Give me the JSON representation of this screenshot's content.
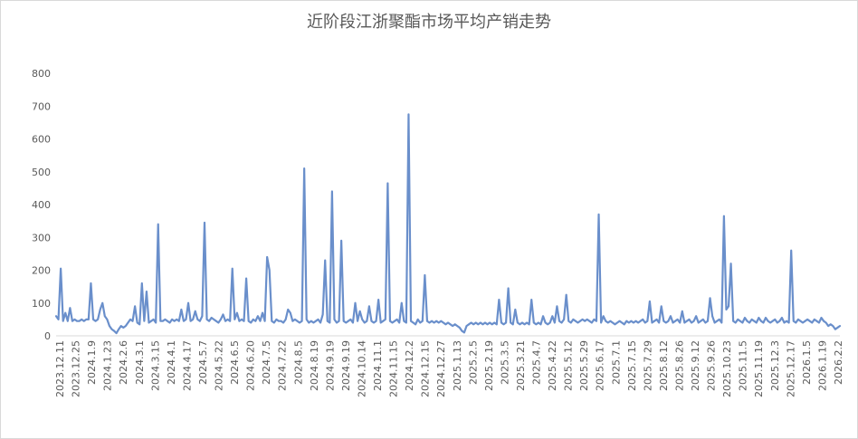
{
  "chart_data": {
    "type": "line",
    "title": "近阶段江浙聚酯市场平均产销走势",
    "xlabel": "",
    "ylabel": "",
    "ylim": [
      0,
      800
    ],
    "yticks": [
      0,
      100,
      200,
      300,
      400,
      500,
      600,
      700,
      800
    ],
    "grid": false,
    "legend": "none",
    "line_color": "#6a8fcb",
    "x_tick_labels": [
      "2023.12.11",
      "2023.12.25",
      "2024.1.9",
      "2024.1.23",
      "2024.2.6",
      "2024.3.1",
      "2024.3.15",
      "2024.4.1",
      "2024.4.17",
      "2024.5.7",
      "2024.5.22",
      "2024.6.5",
      "2024.6.20",
      "2024.7.5",
      "2024.7.22",
      "2024.8.5",
      "2024.8.19",
      "2024.9.19",
      "2024.9.19",
      "2024.10.14",
      "2024.11.1",
      "2024.11.15",
      "2024.12.2",
      "2024.12.15",
      "2024.12.27",
      "2025.1.13",
      "2025.2.5",
      "2025.2.19",
      "2025.3.5",
      "2025.3.21",
      "2025.4.7",
      "2025.4.22",
      "2025.5.12",
      "2025.5.29",
      "2025.6.17",
      "2025.7.1",
      "2025.7.15",
      "2025.7.29",
      "2025.8.12",
      "2025.8.26",
      "2025.9.12",
      "2025.9.26",
      "2025.10.23",
      "2025.11.5",
      "2025.11.19",
      "2025.12.3",
      "2025.12.17",
      "2026.1.5",
      "2026.1.19",
      "2026.2.2"
    ],
    "values": [
      60,
      50,
      205,
      45,
      70,
      45,
      85,
      45,
      50,
      45,
      45,
      50,
      45,
      50,
      50,
      160,
      50,
      45,
      50,
      80,
      100,
      60,
      50,
      30,
      20,
      15,
      8,
      20,
      30,
      25,
      30,
      40,
      50,
      45,
      90,
      40,
      35,
      160,
      45,
      135,
      40,
      45,
      50,
      40,
      340,
      45,
      45,
      50,
      45,
      40,
      50,
      45,
      50,
      45,
      80,
      45,
      50,
      100,
      45,
      50,
      75,
      50,
      45,
      60,
      345,
      50,
      45,
      55,
      50,
      45,
      40,
      50,
      65,
      45,
      50,
      45,
      205,
      50,
      70,
      45,
      50,
      45,
      175,
      45,
      40,
      50,
      45,
      60,
      45,
      70,
      45,
      240,
      200,
      45,
      40,
      50,
      45,
      45,
      40,
      50,
      80,
      70,
      45,
      50,
      45,
      40,
      45,
      510,
      50,
      40,
      45,
      40,
      45,
      50,
      40,
      65,
      230,
      45,
      40,
      440,
      50,
      40,
      45,
      290,
      45,
      40,
      45,
      50,
      40,
      100,
      45,
      75,
      50,
      40,
      45,
      90,
      45,
      40,
      45,
      110,
      40,
      45,
      50,
      465,
      45,
      40,
      45,
      50,
      40,
      100,
      45,
      40,
      675,
      45,
      40,
      35,
      50,
      40,
      45,
      185,
      45,
      40,
      45,
      40,
      45,
      40,
      45,
      40,
      35,
      40,
      35,
      30,
      35,
      30,
      25,
      15,
      10,
      30,
      35,
      40,
      35,
      40,
      35,
      40,
      35,
      40,
      35,
      40,
      35,
      40,
      35,
      110,
      40,
      35,
      40,
      145,
      40,
      35,
      80,
      40,
      35,
      40,
      35,
      40,
      35,
      110,
      40,
      35,
      40,
      35,
      60,
      40,
      35,
      40,
      60,
      40,
      90,
      45,
      40,
      50,
      125,
      45,
      40,
      50,
      45,
      40,
      45,
      50,
      45,
      50,
      45,
      40,
      50,
      45,
      370,
      40,
      60,
      45,
      40,
      45,
      40,
      35,
      40,
      45,
      40,
      35,
      45,
      40,
      45,
      40,
      45,
      40,
      45,
      50,
      40,
      45,
      105,
      40,
      45,
      50,
      40,
      90,
      45,
      40,
      45,
      60,
      40,
      45,
      50,
      40,
      75,
      40,
      45,
      50,
      40,
      45,
      60,
      40,
      45,
      50,
      40,
      45,
      115,
      60,
      40,
      45,
      50,
      40,
      365,
      80,
      90,
      220,
      45,
      40,
      50,
      45,
      40,
      55,
      45,
      40,
      50,
      45,
      40,
      55,
      45,
      40,
      55,
      45,
      40,
      45,
      50,
      40,
      45,
      55,
      40,
      45,
      40,
      260,
      45,
      40,
      50,
      45,
      40,
      45,
      50,
      45,
      40,
      50,
      45,
      40,
      55,
      45,
      40,
      30,
      35,
      30,
      20,
      25,
      30
    ]
  }
}
